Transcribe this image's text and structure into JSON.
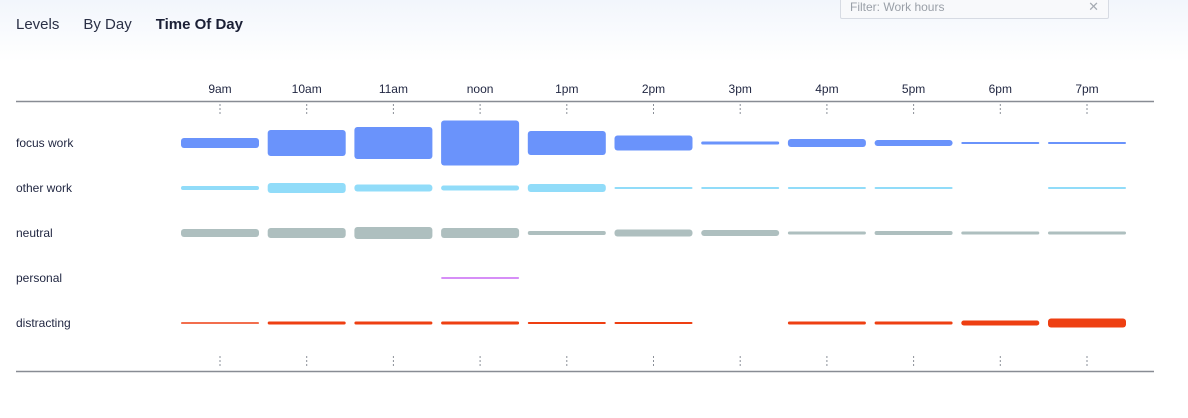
{
  "tabs": [
    {
      "label": "Levels",
      "active": false
    },
    {
      "label": "By Day",
      "active": false
    },
    {
      "label": "Time Of Day",
      "active": true
    }
  ],
  "filter": {
    "placeholder": "Filter: Work hours",
    "value": "",
    "clear_icon": "close-icon"
  },
  "chart_data": {
    "type": "heatmap",
    "title": "",
    "categories": [
      "9am",
      "10am",
      "11am",
      "noon",
      "1pm",
      "2pm",
      "3pm",
      "4pm",
      "5pm",
      "6pm",
      "7pm"
    ],
    "series": [
      {
        "name": "focus work",
        "color": "#6a93fb",
        "values": [
          10,
          26,
          32,
          45,
          24,
          15,
          3,
          8,
          6,
          2,
          2
        ]
      },
      {
        "name": "other work",
        "color": "#91dcf9",
        "values": [
          4,
          10,
          7,
          5,
          8,
          2,
          2,
          2,
          2,
          0,
          2
        ]
      },
      {
        "name": "neutral",
        "color": "#aebfbf",
        "values": [
          8,
          10,
          12,
          10,
          4,
          7,
          6,
          3,
          4,
          3,
          3
        ]
      },
      {
        "name": "personal",
        "color": "#d68ef7",
        "values": [
          0,
          0,
          0,
          2,
          0,
          0,
          0,
          0,
          0,
          0,
          0
        ]
      },
      {
        "name": "distracting",
        "color": "#ee3f12",
        "values": [
          1,
          3,
          3,
          3,
          2,
          2,
          0,
          3,
          3,
          5,
          9
        ]
      }
    ],
    "value_scale_max": 45,
    "grid": false,
    "legend": "none"
  }
}
